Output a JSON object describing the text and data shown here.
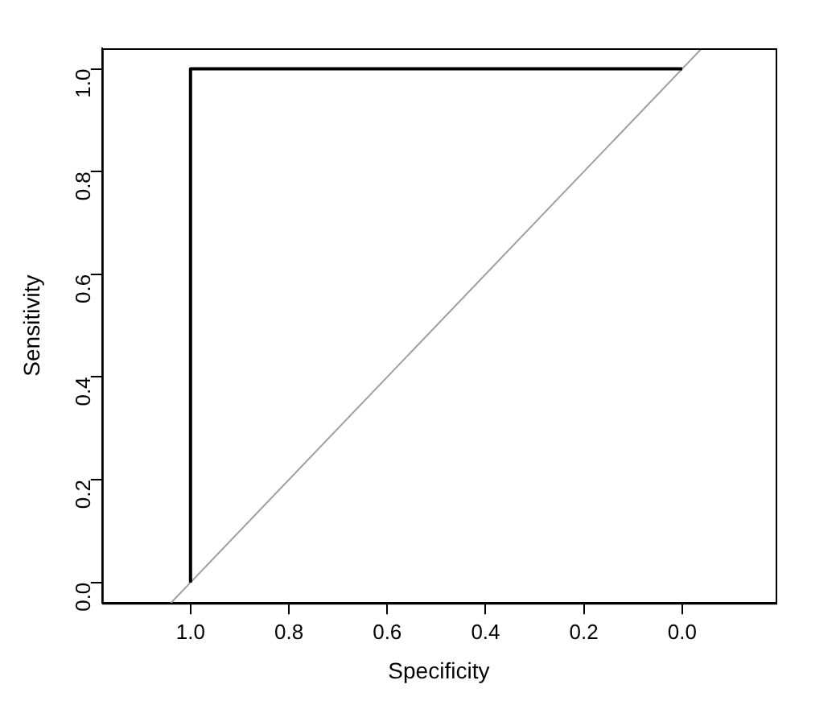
{
  "chart_data": {
    "type": "line",
    "xlabel": "Specificity",
    "ylabel": "Sensitivity",
    "xlim": [
      1.18,
      -0.19
    ],
    "ylim": [
      -0.04,
      1.04
    ],
    "xticks": [
      {
        "value": 1,
        "label": "1.0"
      },
      {
        "value": 0.8,
        "label": "0.8"
      },
      {
        "value": 0.6,
        "label": "0.6"
      },
      {
        "value": 0.4,
        "label": "0.4"
      },
      {
        "value": 0.2,
        "label": "0.2"
      },
      {
        "value": 0,
        "label": "0.0"
      }
    ],
    "yticks": [
      {
        "value": 0,
        "label": "0.0"
      },
      {
        "value": 0.2,
        "label": "0.2"
      },
      {
        "value": 0.4,
        "label": "0.4"
      },
      {
        "value": 0.6,
        "label": "0.6"
      },
      {
        "value": 0.8,
        "label": "0.8"
      },
      {
        "value": 1,
        "label": "1.0"
      }
    ],
    "series": [
      {
        "color": "#000000",
        "x": [
          1,
          1,
          0
        ],
        "values": [
          0,
          1,
          1
        ]
      },
      {
        "color": "#a0a0a0",
        "x": [
          1.04,
          -0.04
        ],
        "values": [
          -0.04,
          1.04
        ]
      }
    ],
    "grid": false,
    "legend": false,
    "marker": "none",
    "line_style": "solid"
  }
}
